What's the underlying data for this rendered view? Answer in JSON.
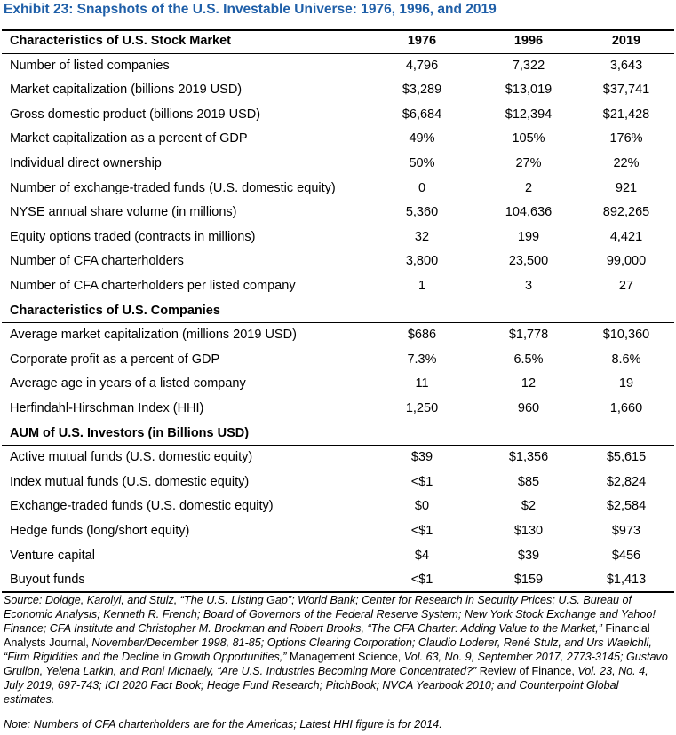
{
  "title": "Exhibit 23: Snapshots of the U.S. Investable Universe: 1976, 1996, and 2019",
  "years": [
    "1976",
    "1996",
    "2019"
  ],
  "sections": [
    {
      "heading": "Characteristics of U.S. Stock Market",
      "rows": [
        {
          "label": "Number of listed companies",
          "values": [
            "4,796",
            "7,322",
            "3,643"
          ]
        },
        {
          "label": "Market capitalization (billions 2019 USD)",
          "values": [
            "$3,289",
            "$13,019",
            "$37,741"
          ]
        },
        {
          "label": "Gross domestic product (billions 2019 USD)",
          "values": [
            "$6,684",
            "$12,394",
            "$21,428"
          ]
        },
        {
          "label": "Market capitalization as a percent of GDP",
          "values": [
            "49%",
            "105%",
            "176%"
          ]
        },
        {
          "label": "Individual direct ownership",
          "values": [
            "50%",
            "27%",
            "22%"
          ]
        },
        {
          "label": "Number of exchange-traded funds (U.S. domestic equity)",
          "values": [
            "0",
            "2",
            "921"
          ]
        },
        {
          "label": "NYSE annual share volume (in millions)",
          "values": [
            "5,360",
            "104,636",
            "892,265"
          ]
        },
        {
          "label": "Equity options traded (contracts in millions)",
          "values": [
            "32",
            "199",
            "4,421"
          ]
        },
        {
          "label": "Number of CFA charterholders",
          "values": [
            "3,800",
            "23,500",
            "99,000"
          ]
        },
        {
          "label": "Number of CFA charterholders per listed company",
          "values": [
            "1",
            "3",
            "27"
          ]
        }
      ]
    },
    {
      "heading": "Characteristics of U.S. Companies",
      "rows": [
        {
          "label": "Average market capitalization (millions 2019 USD)",
          "values": [
            "$686",
            "$1,778",
            "$10,360"
          ]
        },
        {
          "label": "Corporate profit as a percent of GDP",
          "values": [
            "7.3%",
            "6.5%",
            "8.6%"
          ]
        },
        {
          "label": "Average age in years of a listed company",
          "values": [
            "11",
            "12",
            "19"
          ]
        },
        {
          "label": "Herfindahl-Hirschman Index (HHI)",
          "values": [
            "1,250",
            "960",
            "1,660"
          ]
        }
      ]
    },
    {
      "heading": "AUM of U.S. Investors (in Billions USD)",
      "rows": [
        {
          "label": "Active mutual funds (U.S. domestic equity)",
          "values": [
            "$39",
            "$1,356",
            "$5,615"
          ]
        },
        {
          "label": "Index mutual funds (U.S. domestic equity)",
          "values": [
            "<$1",
            "$85",
            "$2,824"
          ]
        },
        {
          "label": "Exchange-traded funds (U.S. domestic equity)",
          "values": [
            "$0",
            "$2",
            "$2,584"
          ]
        },
        {
          "label": "Hedge funds (long/short equity)",
          "values": [
            "<$1",
            "$130",
            "$973"
          ]
        },
        {
          "label": "Venture capital",
          "values": [
            "$4",
            "$39",
            "$456"
          ]
        },
        {
          "label": "Buyout funds",
          "values": [
            "<$1",
            "$159",
            "$1,413"
          ]
        }
      ]
    }
  ],
  "source": {
    "part1": "Source: Doidge, Karolyi, and Stulz, “The U.S. Listing Gap”; World Bank; Center for Research in Security Prices; U.S. Bureau of Economic Analysis; Kenneth R. French; Board of Governors of the Federal Reserve System; New York Stock Exchange and Yahoo! Finance; CFA Institute and Christopher M. Brockman and Robert Brooks, “The CFA Charter: Adding Value to the Market,”",
    "journal1": " Financial Analysts Journal,",
    "part2": " November/December 1998, 81-85; Options Clearing Corporation; Claudio Loderer, René Stulz, and Urs Waelchli, “Firm Rigidities and the Decline in Growth Opportunities,”",
    "journal2": " Management Science,",
    "part3": " Vol. 63, No. 9, September 2017, 2773-3145; Gustavo Grullon, Yelena Larkin, and Roni Michaely, “Are U.S. Industries Becoming More Concentrated?”",
    "journal3": " Review of Finance,",
    "part4": " Vol. 23, No. 4, July 2019, 697-743; ICI 2020 Fact Book; Hedge Fund Research; PitchBook; NVCA Yearbook 2010; and Counterpoint Global estimates."
  },
  "note": "Note: Numbers of CFA charterholders are for the Americas; Latest HHI figure is for 2014."
}
